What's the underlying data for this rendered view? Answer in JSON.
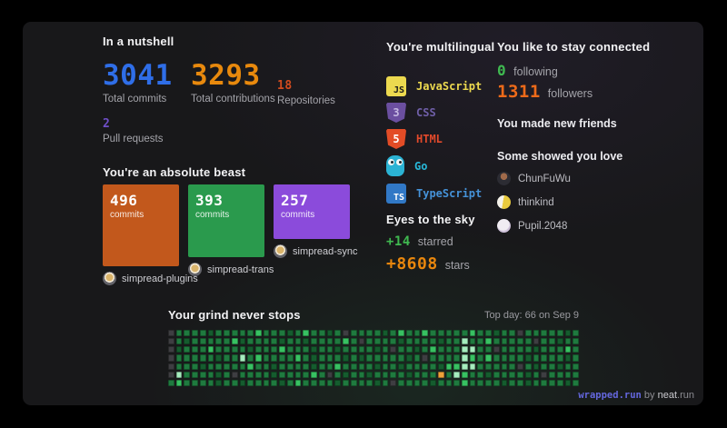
{
  "nutshell": {
    "title": "In a nutshell",
    "stats": [
      {
        "value": "3041",
        "label": "Total commits",
        "color": "#2f6ee8"
      },
      {
        "value": "3293",
        "label": "Total contributions",
        "color": "#e8890d"
      },
      {
        "value": "18",
        "label": "Repositories",
        "color": "#d14b1e"
      },
      {
        "value": "2",
        "label": "Pull requests",
        "color": "#6f4fc8"
      }
    ]
  },
  "beast": {
    "title": "You're an absolute beast",
    "repos": [
      {
        "commits": "496",
        "unit": "commits",
        "name": "simpread-plugins",
        "color": "#c2581c",
        "height": "90"
      },
      {
        "commits": "393",
        "unit": "commits",
        "name": "simpread-trans",
        "color": "#2a9a4d",
        "height": "80"
      },
      {
        "commits": "257",
        "unit": "commits",
        "name": "simpread-sync",
        "color": "#8b4bdb",
        "height": "60"
      }
    ]
  },
  "multilingual": {
    "title": "You're multilingual",
    "languages": [
      {
        "name": "JavaScript",
        "label_color": "#ecd94f",
        "icon_bg": "#ecd94f",
        "icon_fg": "#1a1a1a",
        "icon_glyph": "JS"
      },
      {
        "name": "CSS",
        "label_color": "#6f5fa8",
        "icon_bg": "#6b4fa0",
        "icon_fg": "#c5b8e2",
        "icon_glyph": "3"
      },
      {
        "name": "HTML",
        "label_color": "#e2492b",
        "icon_bg": "#e34c26",
        "icon_fg": "#ffffff",
        "icon_glyph": "5"
      },
      {
        "name": "Go",
        "label_color": "#28b8d8",
        "icon_bg": "#2bb3d4",
        "icon_fg": "#ffffff",
        "icon_glyph": ""
      },
      {
        "name": "TypeScript",
        "label_color": "#4592d8",
        "icon_bg": "#3178c6",
        "icon_fg": "#ffffff",
        "icon_glyph": "TS"
      }
    ]
  },
  "eyes": {
    "title": "Eyes to the sky",
    "items": [
      {
        "value": "+14",
        "label": "starred",
        "color": "#3fb950"
      },
      {
        "value": "+8608",
        "label": "stars",
        "color": "#e8860d"
      }
    ]
  },
  "connected": {
    "title": "You like to stay connected",
    "following": {
      "value": "0",
      "label": "following",
      "color": "#3fb950"
    },
    "followers": {
      "value": "1311",
      "label": "followers",
      "color": "#ec6a1a"
    },
    "friends_title": "You made new friends",
    "love_title": "Some showed you love",
    "people": [
      {
        "name": "ChunFuWu",
        "avatar": "av-chunfuwu"
      },
      {
        "name": "thinkind",
        "avatar": "av-thinkind"
      },
      {
        "name": "Pupil.2048",
        "avatar": "av-pupil"
      }
    ]
  },
  "grind": {
    "title": "Your grind never stops",
    "top_day_text": "Top day: 66 on Sep 9"
  },
  "chart_data": {
    "type": "heatmap",
    "title": "Your grind never stops",
    "annotation": "Top day: 66 on Sep 9",
    "top_day": {
      "value": 66,
      "date": "Sep 9"
    },
    "rows": 7,
    "cols": 52,
    "legend": "levels: 0=none(gray) 1=low 2=medium 3=high 4=highest T=top-day(orange)",
    "levels": {
      "0": "#3e3e42",
      "1": "#155c2e",
      "2": "#1f7a3f",
      "3": "#38c162",
      "4": "#a5edbe",
      "T": "#f0a13a"
    },
    "grid": [
      "0222212222232221232212022221232232222232212202222212",
      "0212222231222212212222320222212222122422322222022122",
      "0122232222122232221221222212022123222442202222122232",
      "0222221224232222321222121222221202222432322221222212",
      "0222122222322122221223222212212222133442222202122122",
      "0422221202222122223202122122221222T24322122221202222",
      "2322221221222212322221222212022221222322221221222212"
    ]
  },
  "footer": {
    "brand": "wrapped.run",
    "sep": " by ",
    "site": "neat",
    "site_tld": ".run"
  }
}
